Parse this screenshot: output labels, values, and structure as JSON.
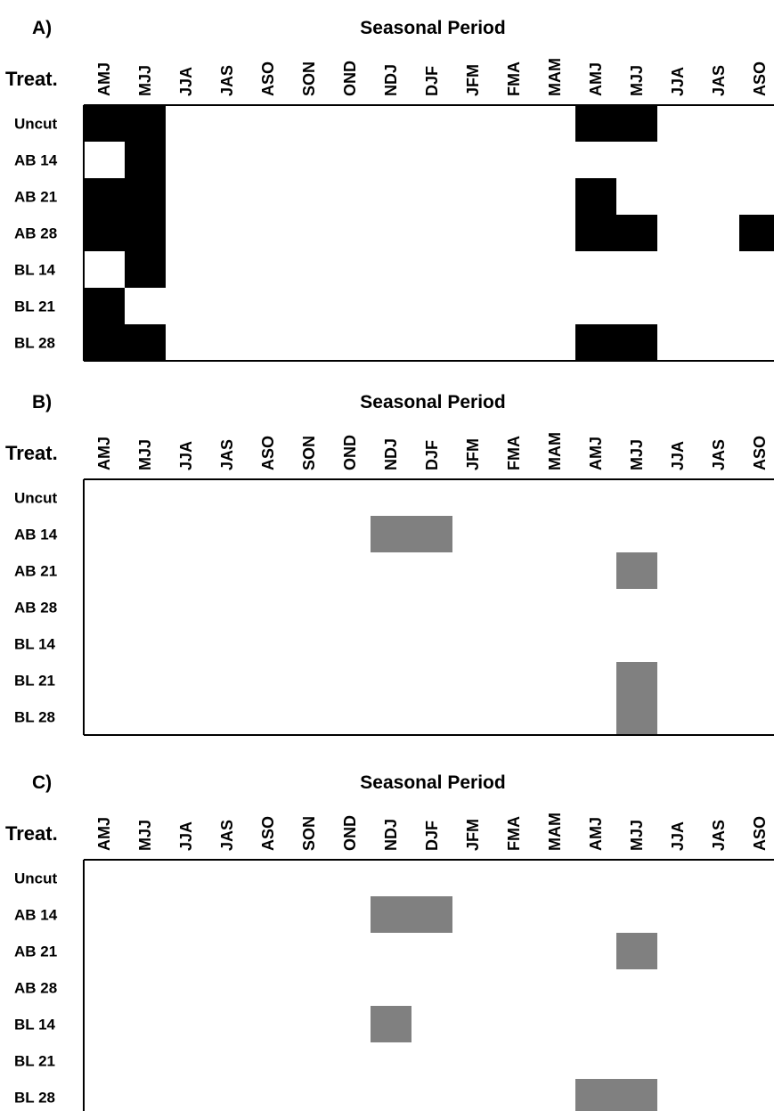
{
  "chart_data": [
    {
      "type": "heatmap",
      "panel": "A)",
      "title": "Seasonal Period",
      "row_header": "Treat.",
      "columns": [
        "AMJ",
        "MJJ",
        "JJA",
        "JAS",
        "ASO",
        "SON",
        "OND",
        "NDJ",
        "DJF",
        "JFM",
        "FMA",
        "MAM",
        "AMJ",
        "MJJ",
        "JJA",
        "JAS",
        "ASO"
      ],
      "rows": [
        "Uncut",
        "AB 14",
        "AB 21",
        "AB 28",
        "BL 14",
        "BL 21",
        "BL 28"
      ],
      "fill_color": "#000000",
      "values": [
        [
          1,
          1,
          0,
          0,
          0,
          0,
          0,
          0,
          0,
          0,
          0,
          0,
          1,
          1,
          0,
          0,
          0
        ],
        [
          0,
          1,
          0,
          0,
          0,
          0,
          0,
          0,
          0,
          0,
          0,
          0,
          0,
          0,
          0,
          0,
          0
        ],
        [
          1,
          1,
          0,
          0,
          0,
          0,
          0,
          0,
          0,
          0,
          0,
          0,
          1,
          0,
          0,
          0,
          0
        ],
        [
          1,
          1,
          0,
          0,
          0,
          0,
          0,
          0,
          0,
          0,
          0,
          0,
          1,
          1,
          0,
          0,
          1
        ],
        [
          0,
          1,
          0,
          0,
          0,
          0,
          0,
          0,
          0,
          0,
          0,
          0,
          0,
          0,
          0,
          0,
          0
        ],
        [
          1,
          0,
          0,
          0,
          0,
          0,
          0,
          0,
          0,
          0,
          0,
          0,
          0,
          0,
          0,
          0,
          0
        ],
        [
          1,
          1,
          0,
          0,
          0,
          0,
          0,
          0,
          0,
          0,
          0,
          0,
          1,
          1,
          0,
          0,
          0
        ]
      ]
    },
    {
      "type": "heatmap",
      "panel": "B)",
      "title": "Seasonal Period",
      "row_header": "Treat.",
      "columns": [
        "AMJ",
        "MJJ",
        "JJA",
        "JAS",
        "ASO",
        "SON",
        "OND",
        "NDJ",
        "DJF",
        "JFM",
        "FMA",
        "MAM",
        "AMJ",
        "MJJ",
        "JJA",
        "JAS",
        "ASO"
      ],
      "rows": [
        "Uncut",
        "AB 14",
        "AB 21",
        "AB 28",
        "BL 14",
        "BL 21",
        "BL 28"
      ],
      "fill_color": "#808080",
      "values": [
        [
          0,
          0,
          0,
          0,
          0,
          0,
          0,
          0,
          0,
          0,
          0,
          0,
          0,
          0,
          0,
          0,
          0
        ],
        [
          0,
          0,
          0,
          0,
          0,
          0,
          0,
          1,
          1,
          0,
          0,
          0,
          0,
          0,
          0,
          0,
          0
        ],
        [
          0,
          0,
          0,
          0,
          0,
          0,
          0,
          0,
          0,
          0,
          0,
          0,
          0,
          1,
          0,
          0,
          0
        ],
        [
          0,
          0,
          0,
          0,
          0,
          0,
          0,
          0,
          0,
          0,
          0,
          0,
          0,
          0,
          0,
          0,
          0
        ],
        [
          0,
          0,
          0,
          0,
          0,
          0,
          0,
          0,
          0,
          0,
          0,
          0,
          0,
          0,
          0,
          0,
          0
        ],
        [
          0,
          0,
          0,
          0,
          0,
          0,
          0,
          0,
          0,
          0,
          0,
          0,
          0,
          1,
          0,
          0,
          0
        ],
        [
          0,
          0,
          0,
          0,
          0,
          0,
          0,
          0,
          0,
          0,
          0,
          0,
          0,
          1,
          0,
          0,
          0
        ]
      ]
    },
    {
      "type": "heatmap",
      "panel": "C)",
      "title": "Seasonal Period",
      "row_header": "Treat.",
      "columns": [
        "AMJ",
        "MJJ",
        "JJA",
        "JAS",
        "ASO",
        "SON",
        "OND",
        "NDJ",
        "DJF",
        "JFM",
        "FMA",
        "MAM",
        "AMJ",
        "MJJ",
        "JJA",
        "JAS",
        "ASO"
      ],
      "rows": [
        "Uncut",
        "AB 14",
        "AB 21",
        "AB 28",
        "BL 14",
        "BL 21",
        "BL 28"
      ],
      "fill_color": "#808080",
      "values": [
        [
          0,
          0,
          0,
          0,
          0,
          0,
          0,
          0,
          0,
          0,
          0,
          0,
          0,
          0,
          0,
          0,
          0
        ],
        [
          0,
          0,
          0,
          0,
          0,
          0,
          0,
          1,
          1,
          0,
          0,
          0,
          0,
          0,
          0,
          0,
          0
        ],
        [
          0,
          0,
          0,
          0,
          0,
          0,
          0,
          0,
          0,
          0,
          0,
          0,
          0,
          1,
          0,
          0,
          0
        ],
        [
          0,
          0,
          0,
          0,
          0,
          0,
          0,
          0,
          0,
          0,
          0,
          0,
          0,
          0,
          0,
          0,
          0
        ],
        [
          0,
          0,
          0,
          0,
          0,
          0,
          0,
          1,
          0,
          0,
          0,
          0,
          0,
          0,
          0,
          0,
          0
        ],
        [
          0,
          0,
          0,
          0,
          0,
          0,
          0,
          0,
          0,
          0,
          0,
          0,
          0,
          0,
          0,
          0,
          0
        ],
        [
          0,
          0,
          0,
          0,
          0,
          0,
          0,
          0,
          0,
          0,
          0,
          0,
          1,
          1,
          0,
          0,
          0
        ]
      ]
    }
  ]
}
